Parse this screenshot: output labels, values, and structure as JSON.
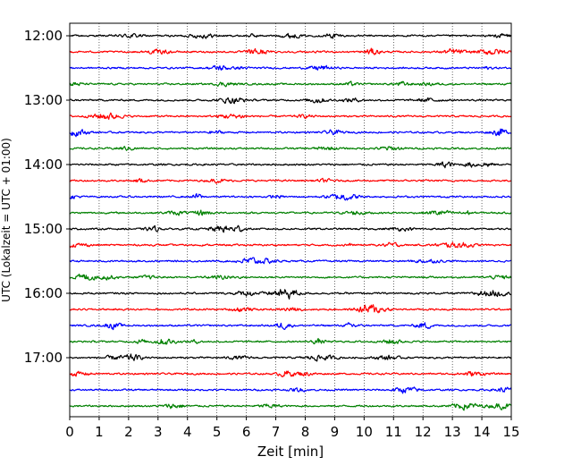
{
  "chart_data": {
    "type": "line",
    "title": "",
    "xlabel": "Zeit  [min]",
    "ylabel": "UTC (Lokalzeit = UTC + 01:00)",
    "xlim": [
      0,
      15
    ],
    "x_ticks": [
      "0",
      "1",
      "2",
      "3",
      "4",
      "5",
      "6",
      "7",
      "8",
      "9",
      "10",
      "11",
      "12",
      "13",
      "14",
      "15"
    ],
    "y_ticks": [
      "12:00",
      "13:00",
      "14:00",
      "15:00",
      "16:00",
      "17:00"
    ],
    "grid": "vertical dotted at each minute",
    "trace_start": "12:00",
    "trace_interval_min": 15,
    "trace_count": 24,
    "trace_colors": [
      "#000000",
      "#ff0000",
      "#0000ff",
      "#008000"
    ],
    "series_description": "seismograph helicorder: 24 rows of 15-minute traces, colors cycle black, red, blue, green"
  }
}
